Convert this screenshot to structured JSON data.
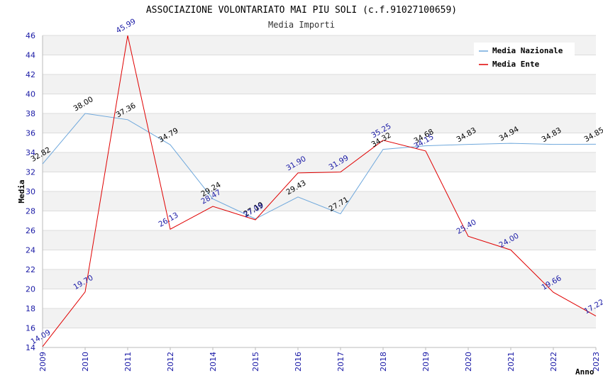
{
  "chart_data": {
    "type": "line",
    "title": "ASSOCIAZIONE VOLONTARIATO MAI PIU SOLI (c.f.91027100659)",
    "subtitle": "Media Importi",
    "xlabel": "Anno",
    "ylabel": "Media",
    "ylim": [
      14,
      46
    ],
    "yticks": [
      "14",
      "16",
      "18",
      "20",
      "22",
      "24",
      "26",
      "28",
      "30",
      "32",
      "34",
      "36",
      "38",
      "40",
      "42",
      "44",
      "46"
    ],
    "categories": [
      "2009",
      "2010",
      "2011",
      "2012",
      "2014",
      "2015",
      "2016",
      "2017",
      "2018",
      "2019",
      "2020",
      "2021",
      "2022",
      "2023"
    ],
    "legend_position": "top-right",
    "series": [
      {
        "name": "Media Nazionale",
        "color": "#6fa8dc",
        "values": [
          32.82,
          38.0,
          37.36,
          34.79,
          29.24,
          27.19,
          29.43,
          27.71,
          34.32,
          34.68,
          34.83,
          34.94,
          34.83,
          34.85
        ],
        "labels": [
          "32.82",
          "38.00",
          "37.36",
          "34.79",
          "29.24",
          "27.19",
          "29.43",
          "27.71",
          "34.32",
          "34.68",
          "34.83",
          "34.94",
          "34.83",
          "34.85"
        ]
      },
      {
        "name": "Media Ente",
        "color": "#e00000",
        "values": [
          14.09,
          19.7,
          45.99,
          26.13,
          28.47,
          27.09,
          31.9,
          31.99,
          35.25,
          34.15,
          25.4,
          24.0,
          19.66,
          17.22
        ],
        "labels": [
          "14.09",
          "19.70",
          "45.99",
          "26.13",
          "28.47",
          "27.09",
          "31.90",
          "31.99",
          "35.25",
          "34.15",
          "25.40",
          "24.00",
          "19.66",
          "17.22"
        ]
      }
    ]
  }
}
